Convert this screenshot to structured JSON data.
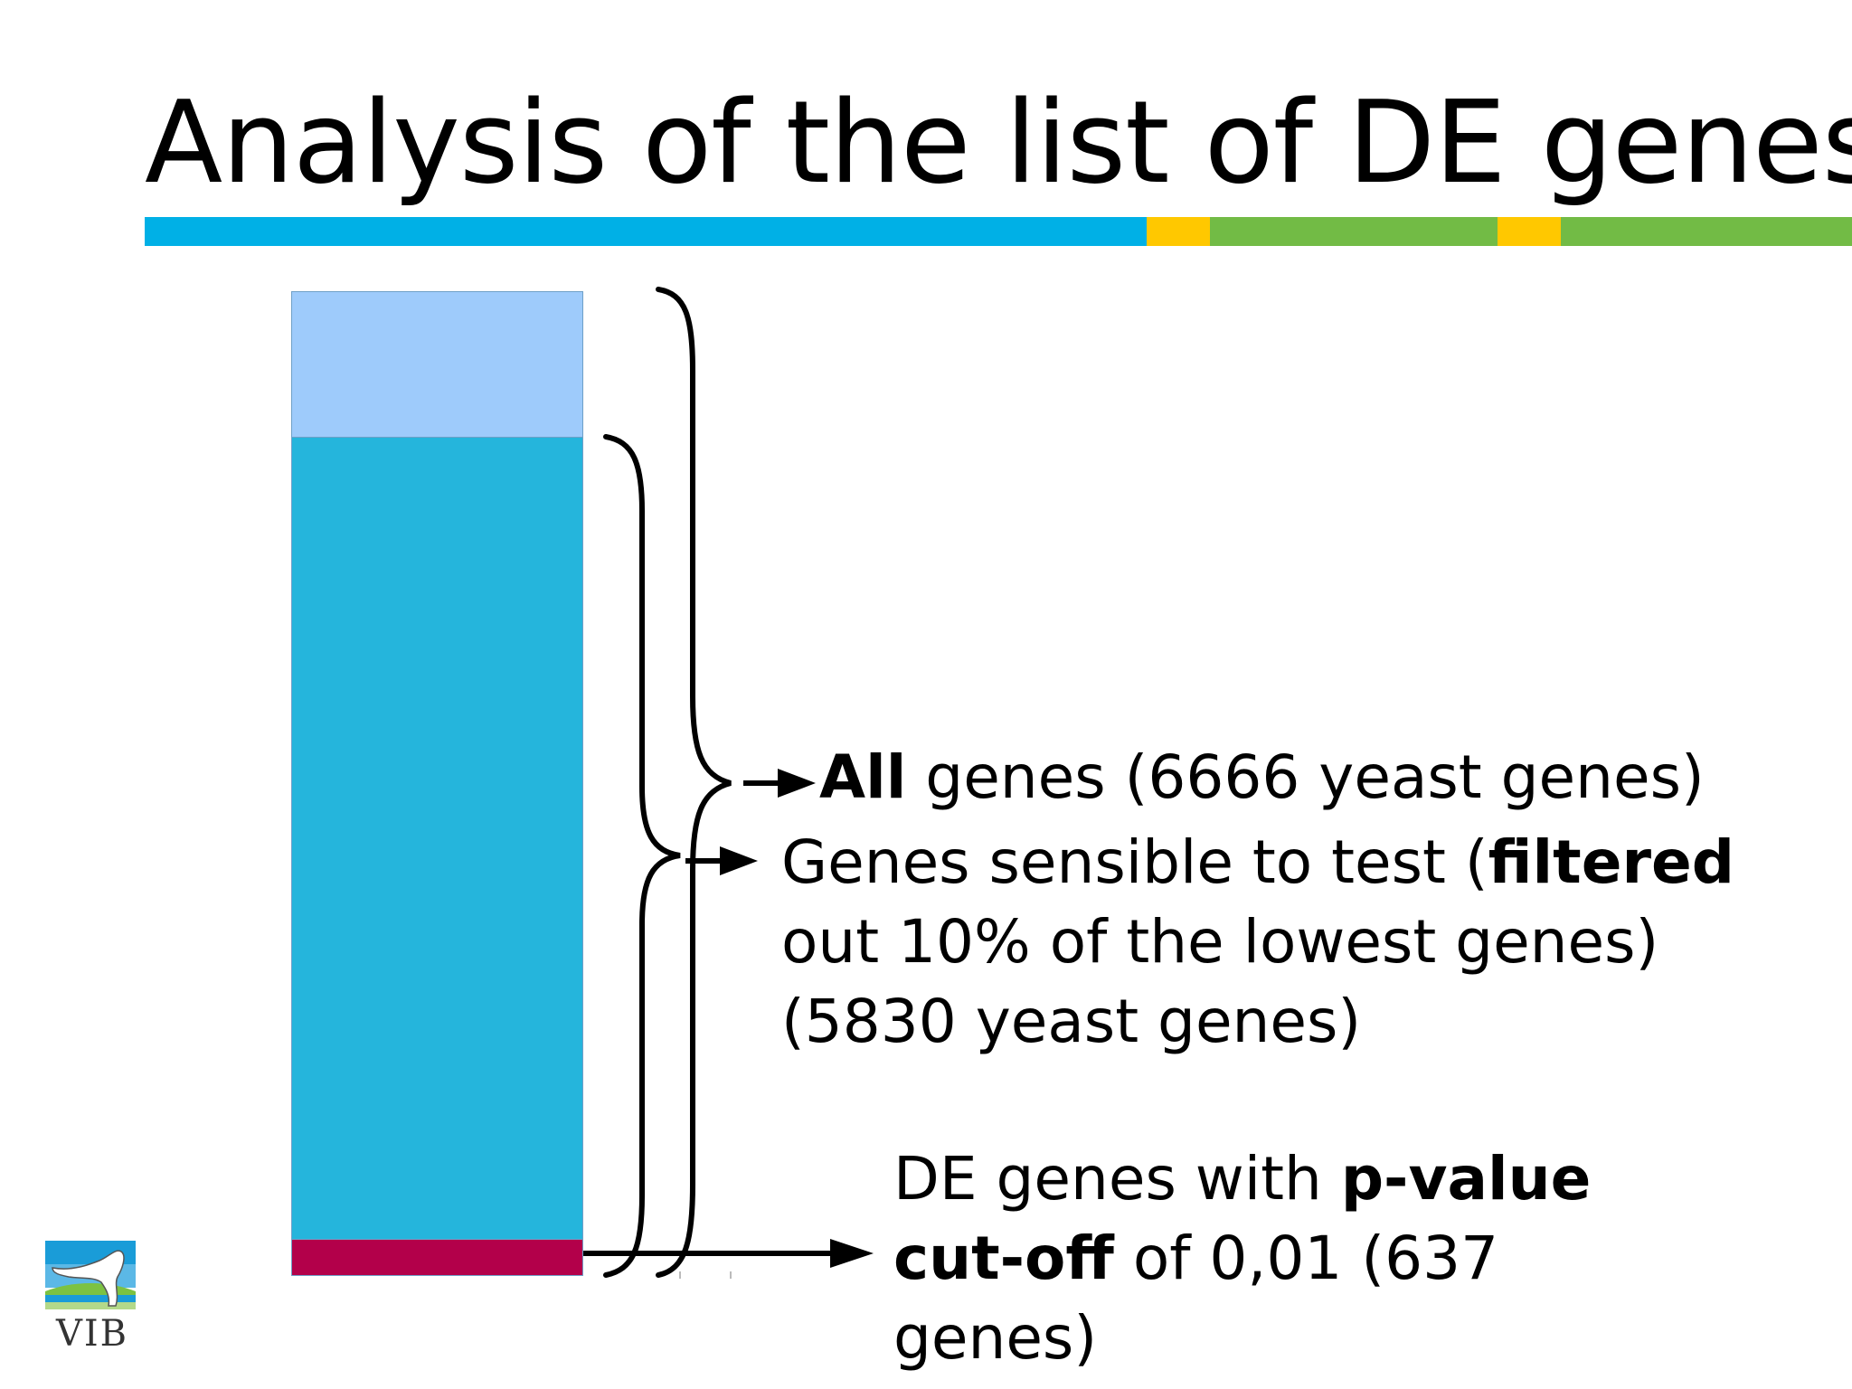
{
  "slide": {
    "title": "Analysis of the list of DE genes"
  },
  "header_band": {
    "colors": [
      "#00b0e6",
      "#ffc800",
      "#72bb45",
      "#ffc800",
      "#72bb45"
    ]
  },
  "stacked_bar": {
    "segments": [
      {
        "color": "#9ecbfb"
      },
      {
        "color": "#25b5dc"
      },
      {
        "color": "#b3004a"
      }
    ]
  },
  "labels": {
    "all_genes": {
      "bold": "All",
      "rest": " genes (6666 yeast genes)"
    },
    "sensible_genes": {
      "line1_pre": "Genes sensible to test (",
      "line1_bold": "filtered",
      "line2": "out 10% of the lowest genes)",
      "line3": "(5830 yeast genes)"
    },
    "de_genes": {
      "line1_pre": "DE genes with ",
      "line1_bold": "p-value",
      "line2_bold": "cut-off",
      "line2_rest": " of 0,01 (637",
      "line3": "genes)"
    }
  },
  "logo": {
    "text": "VIB",
    "icon": "vib-logo-icon"
  }
}
